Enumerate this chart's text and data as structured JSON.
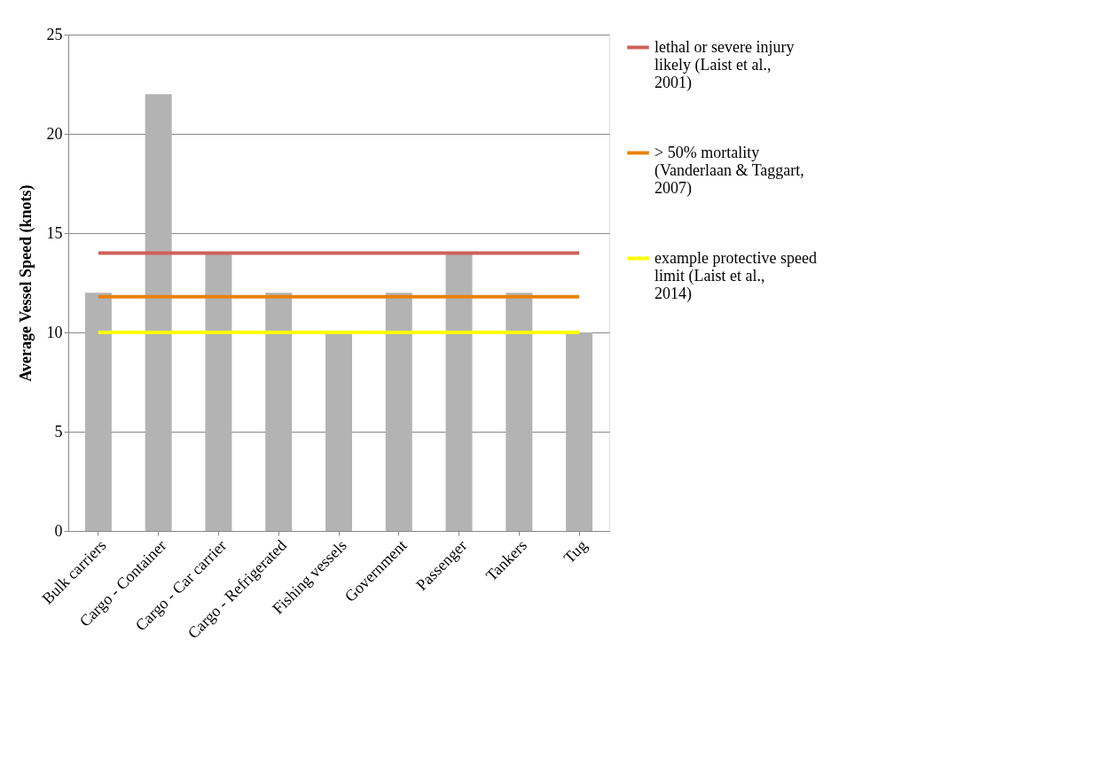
{
  "chart_data": {
    "type": "bar",
    "ylabel": "Average Vessel Speed (knots)",
    "categories": [
      "Bulk carriers",
      "Cargo - Container",
      "Cargo - Car carrier",
      "Cargo - Refrigerated",
      "Fishing vessels",
      "Government",
      "Passenger",
      "Tankers",
      "Tug"
    ],
    "series": [
      {
        "color": "#b3b3b3",
        "values": [
          12,
          22,
          14,
          12,
          10,
          12,
          14,
          12,
          10
        ]
      },
      {
        "type": "line",
        "name": "lethal or severe injury likely (Laist et al., 2001)",
        "color": "#d0605a",
        "values": [
          14,
          14,
          14,
          14,
          14,
          14,
          14,
          14,
          14
        ]
      },
      {
        "type": "line",
        "name": "> 50% mortality (Vanderlaan & Taggart, 2007)",
        "color": "#e8820c",
        "values": [
          11.8,
          11.8,
          11.8,
          11.8,
          11.8,
          11.8,
          11.8,
          11.8,
          11.8
        ]
      },
      {
        "type": "line",
        "name": "example protective speed limit (Laist et al., 2014)",
        "color": "#ffff00",
        "values": [
          10,
          10,
          10,
          10,
          10,
          10,
          10,
          10,
          10
        ]
      }
    ],
    "ylim": [
      0,
      25
    ],
    "yticks": [
      0,
      5,
      10,
      15,
      20,
      25
    ],
    "grid": "y",
    "legend": "right",
    "marker": "none",
    "line_style": "solid"
  }
}
